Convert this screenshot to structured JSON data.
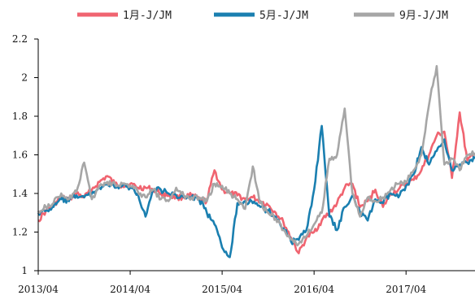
{
  "chart_data": {
    "type": "line",
    "xlabel": "",
    "ylabel": "",
    "ylim": [
      1.0,
      2.2
    ],
    "y_ticks": [
      "2.2",
      "2",
      "1.8",
      "1.6",
      "1.4",
      "1.2",
      "1"
    ],
    "x_tick_labels": [
      "2013/04",
      "2014/04",
      "2015/04",
      "2016/04",
      "2017/04"
    ],
    "x_ticks": [
      "2013-04",
      "2014-04",
      "2015-04",
      "2016-04",
      "2017-04"
    ],
    "xlim": [
      "2013-04",
      "2018-01"
    ],
    "grid": false,
    "legend_position": "top",
    "series": [
      {
        "name": "1月-J/JM",
        "color": "#f06470",
        "points": [
          [
            "2013-04",
            1.26
          ],
          [
            "2013-05",
            1.31
          ],
          [
            "2013-06",
            1.34
          ],
          [
            "2013-07",
            1.38
          ],
          [
            "2013-08",
            1.37
          ],
          [
            "2013-09",
            1.4
          ],
          [
            "2013-10",
            1.38
          ],
          [
            "2013-11",
            1.42
          ],
          [
            "2013-12",
            1.46
          ],
          [
            "2014-01",
            1.49
          ],
          [
            "2014-02",
            1.45
          ],
          [
            "2014-03",
            1.44
          ],
          [
            "2014-04",
            1.45
          ],
          [
            "2014-05",
            1.43
          ],
          [
            "2014-06",
            1.43
          ],
          [
            "2014-07",
            1.42
          ],
          [
            "2014-08",
            1.4
          ],
          [
            "2014-09",
            1.39
          ],
          [
            "2014-10",
            1.38
          ],
          [
            "2014-11",
            1.38
          ],
          [
            "2014-12",
            1.39
          ],
          [
            "2015-01",
            1.37
          ],
          [
            "2015-02",
            1.36
          ],
          [
            "2015-03",
            1.52
          ],
          [
            "2015-04",
            1.42
          ],
          [
            "2015-05",
            1.4
          ],
          [
            "2015-06",
            1.39
          ],
          [
            "2015-07",
            1.37
          ],
          [
            "2015-08",
            1.38
          ],
          [
            "2015-09",
            1.36
          ],
          [
            "2015-10",
            1.34
          ],
          [
            "2015-11",
            1.3
          ],
          [
            "2015-12",
            1.25
          ],
          [
            "2016-01",
            1.17
          ],
          [
            "2016-02",
            1.09
          ],
          [
            "2016-03",
            1.17
          ],
          [
            "2016-04",
            1.2
          ],
          [
            "2016-05",
            1.26
          ],
          [
            "2016-06",
            1.3
          ],
          [
            "2016-07",
            1.35
          ],
          [
            "2016-08",
            1.43
          ],
          [
            "2016-09",
            1.45
          ],
          [
            "2016-10",
            1.33
          ],
          [
            "2016-11",
            1.36
          ],
          [
            "2016-12",
            1.42
          ],
          [
            "2017-01",
            1.33
          ],
          [
            "2017-02",
            1.4
          ],
          [
            "2017-03",
            1.42
          ],
          [
            "2017-04",
            1.45
          ],
          [
            "2017-05",
            1.47
          ],
          [
            "2017-06",
            1.52
          ],
          [
            "2017-07",
            1.6
          ],
          [
            "2017-08",
            1.7
          ],
          [
            "2017-09",
            1.72
          ],
          [
            "2017-10",
            1.48
          ],
          [
            "2017-11",
            1.82
          ],
          [
            "2017-12",
            1.57
          ],
          [
            "2018-01",
            1.6
          ]
        ]
      },
      {
        "name": "5月-J/JM",
        "color": "#1a7fb0",
        "points": [
          [
            "2013-04",
            1.3
          ],
          [
            "2013-05",
            1.31
          ],
          [
            "2013-06",
            1.33
          ],
          [
            "2013-07",
            1.37
          ],
          [
            "2013-08",
            1.36
          ],
          [
            "2013-09",
            1.39
          ],
          [
            "2013-10",
            1.38
          ],
          [
            "2013-11",
            1.4
          ],
          [
            "2013-12",
            1.43
          ],
          [
            "2014-01",
            1.45
          ],
          [
            "2014-02",
            1.43
          ],
          [
            "2014-03",
            1.44
          ],
          [
            "2014-04",
            1.43
          ],
          [
            "2014-05",
            1.4
          ],
          [
            "2014-06",
            1.28
          ],
          [
            "2014-07",
            1.42
          ],
          [
            "2014-08",
            1.42
          ],
          [
            "2014-09",
            1.4
          ],
          [
            "2014-10",
            1.39
          ],
          [
            "2014-11",
            1.38
          ],
          [
            "2014-12",
            1.38
          ],
          [
            "2015-01",
            1.37
          ],
          [
            "2015-02",
            1.3
          ],
          [
            "2015-03",
            1.24
          ],
          [
            "2015-04",
            1.12
          ],
          [
            "2015-05",
            1.07
          ],
          [
            "2015-06",
            1.35
          ],
          [
            "2015-07",
            1.36
          ],
          [
            "2015-08",
            1.35
          ],
          [
            "2015-09",
            1.33
          ],
          [
            "2015-10",
            1.31
          ],
          [
            "2015-11",
            1.28
          ],
          [
            "2015-12",
            1.22
          ],
          [
            "2016-01",
            1.15
          ],
          [
            "2016-02",
            1.16
          ],
          [
            "2016-03",
            1.21
          ],
          [
            "2016-04",
            1.42
          ],
          [
            "2016-05",
            1.75
          ],
          [
            "2016-06",
            1.28
          ],
          [
            "2016-07",
            1.21
          ],
          [
            "2016-08",
            1.33
          ],
          [
            "2016-09",
            1.39
          ],
          [
            "2016-10",
            1.3
          ],
          [
            "2016-11",
            1.26
          ],
          [
            "2016-12",
            1.37
          ],
          [
            "2017-01",
            1.35
          ],
          [
            "2017-02",
            1.4
          ],
          [
            "2017-03",
            1.38
          ],
          [
            "2017-04",
            1.44
          ],
          [
            "2017-05",
            1.5
          ],
          [
            "2017-06",
            1.64
          ],
          [
            "2017-07",
            1.55
          ],
          [
            "2017-08",
            1.62
          ],
          [
            "2017-09",
            1.68
          ],
          [
            "2017-10",
            1.52
          ],
          [
            "2017-11",
            1.55
          ],
          [
            "2017-12",
            1.56
          ],
          [
            "2018-01",
            1.58
          ]
        ]
      },
      {
        "name": "9月-J/JM",
        "color": "#a6a6a6",
        "points": [
          [
            "2013-04",
            1.31
          ],
          [
            "2013-05",
            1.33
          ],
          [
            "2013-06",
            1.35
          ],
          [
            "2013-07",
            1.4
          ],
          [
            "2013-08",
            1.37
          ],
          [
            "2013-09",
            1.41
          ],
          [
            "2013-10",
            1.56
          ],
          [
            "2013-11",
            1.37
          ],
          [
            "2013-12",
            1.44
          ],
          [
            "2014-01",
            1.46
          ],
          [
            "2014-02",
            1.45
          ],
          [
            "2014-03",
            1.45
          ],
          [
            "2014-04",
            1.44
          ],
          [
            "2014-05",
            1.41
          ],
          [
            "2014-06",
            1.38
          ],
          [
            "2014-07",
            1.42
          ],
          [
            "2014-08",
            1.37
          ],
          [
            "2014-09",
            1.36
          ],
          [
            "2014-10",
            1.43
          ],
          [
            "2014-11",
            1.39
          ],
          [
            "2014-12",
            1.38
          ],
          [
            "2015-01",
            1.38
          ],
          [
            "2015-02",
            1.36
          ],
          [
            "2015-03",
            1.45
          ],
          [
            "2015-04",
            1.44
          ],
          [
            "2015-05",
            1.4
          ],
          [
            "2015-06",
            1.37
          ],
          [
            "2015-07",
            1.32
          ],
          [
            "2015-08",
            1.54
          ],
          [
            "2015-09",
            1.35
          ],
          [
            "2015-10",
            1.3
          ],
          [
            "2015-11",
            1.27
          ],
          [
            "2015-12",
            1.21
          ],
          [
            "2016-01",
            1.16
          ],
          [
            "2016-02",
            1.14
          ],
          [
            "2016-03",
            1.18
          ],
          [
            "2016-04",
            1.24
          ],
          [
            "2016-05",
            1.3
          ],
          [
            "2016-06",
            1.58
          ],
          [
            "2016-07",
            1.6
          ],
          [
            "2016-08",
            1.84
          ],
          [
            "2016-09",
            1.4
          ],
          [
            "2016-10",
            1.28
          ],
          [
            "2016-11",
            1.38
          ],
          [
            "2016-12",
            1.36
          ],
          [
            "2017-01",
            1.38
          ],
          [
            "2017-02",
            1.42
          ],
          [
            "2017-03",
            1.45
          ],
          [
            "2017-04",
            1.46
          ],
          [
            "2017-05",
            1.52
          ],
          [
            "2017-06",
            1.6
          ],
          [
            "2017-07",
            1.86
          ],
          [
            "2017-08",
            2.06
          ],
          [
            "2017-09",
            1.55
          ],
          [
            "2017-10",
            1.58
          ],
          [
            "2017-11",
            1.52
          ],
          [
            "2017-12",
            1.6
          ],
          [
            "2018-01",
            1.61
          ]
        ]
      }
    ]
  }
}
